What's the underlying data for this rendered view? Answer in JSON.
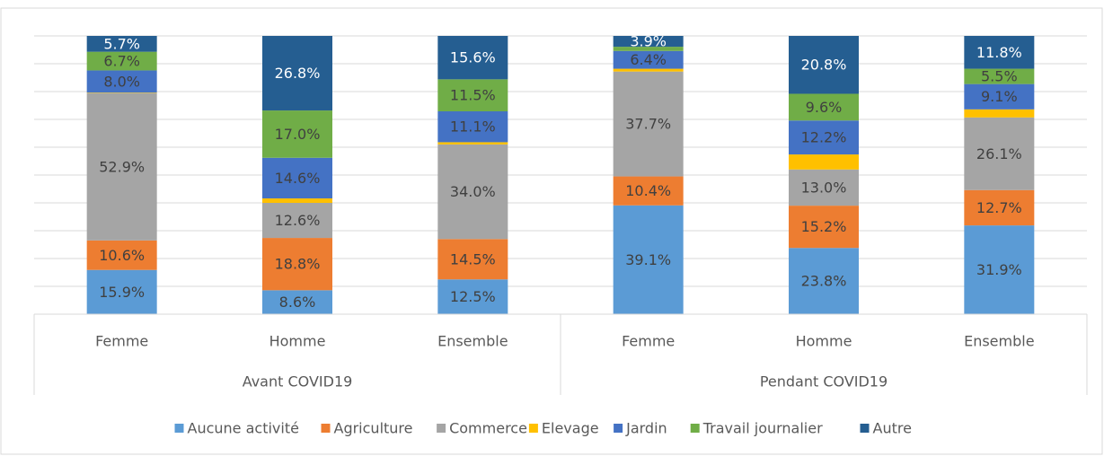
{
  "chart_data": {
    "type": "stacked_bar",
    "groups": [
      {
        "name": "Avant COVID19",
        "categories": [
          "Femme",
          "Homme",
          "Ensemble"
        ]
      },
      {
        "name": "Pendant COVID19",
        "categories": [
          "Femme",
          "Homme",
          "Ensemble"
        ]
      }
    ],
    "ylim": [
      0,
      100
    ],
    "yticks": [
      0,
      10,
      20,
      30,
      40,
      50,
      60,
      70,
      80,
      90,
      100
    ],
    "grid": true,
    "series": [
      {
        "name": "Aucune activité",
        "color": "#5b9bd5",
        "values": [
          15.9,
          8.6,
          12.5,
          39.1,
          23.8,
          31.9
        ],
        "value_labels": [
          "15.9%",
          "8.6%",
          "12.5%",
          "39.1%",
          "23.8%",
          "31.9%"
        ]
      },
      {
        "name": "Agriculture",
        "color": "#ed7d31",
        "values": [
          10.6,
          18.8,
          14.5,
          10.4,
          15.2,
          12.7
        ],
        "value_labels": [
          "10.6%",
          "18.8%",
          "14.5%",
          "10.4%",
          "15.2%",
          "12.7%"
        ]
      },
      {
        "name": "Commerce",
        "color": "#a5a5a5",
        "values": [
          52.9,
          12.6,
          34.0,
          37.7,
          13.0,
          26.1
        ],
        "value_labels": [
          "52.9%",
          "12.6%",
          "34.0%",
          "37.7%",
          "13.0%",
          "26.1%"
        ]
      },
      {
        "name": "Elevage",
        "color": "#ffc000",
        "values": [
          0.2,
          1.6,
          0.8,
          1.0,
          5.4,
          2.9
        ],
        "value_labels": [
          null,
          null,
          null,
          null,
          null,
          null
        ]
      },
      {
        "name": "Jardin",
        "color": "#4472c4",
        "values": [
          8.0,
          14.6,
          11.1,
          6.4,
          12.2,
          9.1
        ],
        "value_labels": [
          "8.0%",
          "14.6%",
          "11.1%",
          "6.4%",
          "12.2%",
          "9.1%"
        ]
      },
      {
        "name": "Travail journalier",
        "color": "#70ad47",
        "values": [
          6.7,
          17.0,
          11.5,
          1.5,
          9.6,
          5.5
        ],
        "value_labels": [
          "6.7%",
          "17.0%",
          "11.5%",
          null,
          "9.6%",
          "5.5%"
        ]
      },
      {
        "name": "Autre",
        "color": "#255e91",
        "values": [
          5.7,
          26.8,
          15.6,
          3.9,
          20.8,
          11.8
        ],
        "value_labels": [
          "5.7%",
          "26.8%",
          "15.6%",
          "3.9%",
          "20.8%",
          "11.8%"
        ]
      }
    ]
  }
}
